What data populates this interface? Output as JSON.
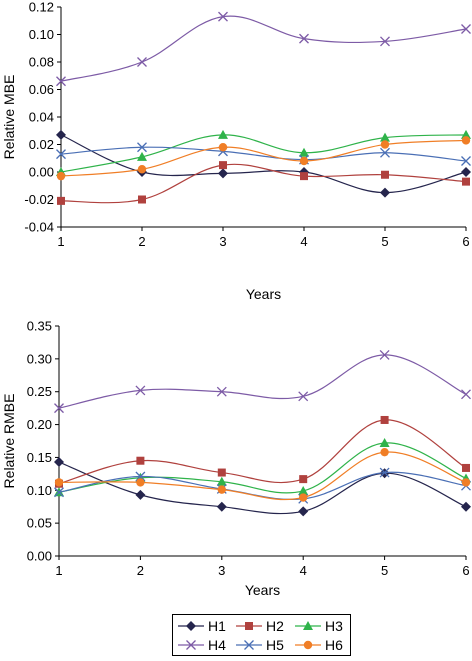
{
  "legend_title": "",
  "chart_data": [
    {
      "type": "line",
      "xlabel": "Years",
      "ylabel": "Relative MBE",
      "x": [
        1,
        2,
        3,
        4,
        5,
        6
      ],
      "xticks": [
        "1",
        "2",
        "3",
        "4",
        "5",
        "6"
      ],
      "ylim": [
        -0.04,
        0.12
      ],
      "yticks": [
        "-0.04",
        "-0.02",
        "0.00",
        "0.02",
        "0.04",
        "0.06",
        "0.08",
        "0.10",
        "0.12"
      ],
      "grid": false,
      "series": [
        {
          "name": "H1",
          "values": [
            0.027,
            0.0,
            -0.001,
            0.0,
            -0.015,
            0.0
          ]
        },
        {
          "name": "H2",
          "values": [
            -0.021,
            -0.02,
            0.005,
            -0.003,
            -0.002,
            -0.007
          ]
        },
        {
          "name": "H3",
          "values": [
            0.0,
            0.011,
            0.027,
            0.014,
            0.025,
            0.027
          ]
        },
        {
          "name": "H4",
          "values": [
            0.066,
            0.08,
            0.113,
            0.097,
            0.095,
            0.104
          ]
        },
        {
          "name": "H5",
          "values": [
            0.013,
            0.018,
            0.015,
            0.009,
            0.014,
            0.008
          ]
        },
        {
          "name": "H6",
          "values": [
            -0.003,
            0.002,
            0.018,
            0.008,
            0.02,
            0.023
          ]
        }
      ]
    },
    {
      "type": "line",
      "xlabel": "Years",
      "ylabel": "Relative RMBE",
      "x": [
        1,
        2,
        3,
        4,
        5,
        6
      ],
      "xticks": [
        "1",
        "2",
        "3",
        "4",
        "5",
        "6"
      ],
      "ylim": [
        0.0,
        0.35
      ],
      "yticks": [
        "0.00",
        "0.05",
        "0.10",
        "0.15",
        "0.20",
        "0.25",
        "0.30",
        "0.35"
      ],
      "grid": false,
      "series": [
        {
          "name": "H1",
          "values": [
            0.143,
            0.093,
            0.075,
            0.068,
            0.126,
            0.075
          ]
        },
        {
          "name": "H2",
          "values": [
            0.11,
            0.145,
            0.127,
            0.117,
            0.207,
            0.134
          ]
        },
        {
          "name": "H3",
          "values": [
            0.097,
            0.119,
            0.113,
            0.099,
            0.172,
            0.118
          ]
        },
        {
          "name": "H4",
          "values": [
            0.225,
            0.252,
            0.25,
            0.243,
            0.306,
            0.246
          ]
        },
        {
          "name": "H5",
          "values": [
            0.097,
            0.121,
            0.102,
            0.087,
            0.127,
            0.107
          ]
        },
        {
          "name": "H6",
          "values": [
            0.112,
            0.112,
            0.101,
            0.089,
            0.158,
            0.112
          ]
        }
      ]
    }
  ],
  "legend": [
    {
      "name": "H1",
      "marker": "diamond",
      "color": "#25254d"
    },
    {
      "name": "H2",
      "marker": "square",
      "color": "#b0413e"
    },
    {
      "name": "H3",
      "marker": "triangle",
      "color": "#2fb34a"
    },
    {
      "name": "H4",
      "marker": "x",
      "color": "#7d5ba6"
    },
    {
      "name": "H5",
      "marker": "x",
      "color": "#4a6fb5"
    },
    {
      "name": "H6",
      "marker": "circle",
      "color": "#f07e26"
    }
  ]
}
